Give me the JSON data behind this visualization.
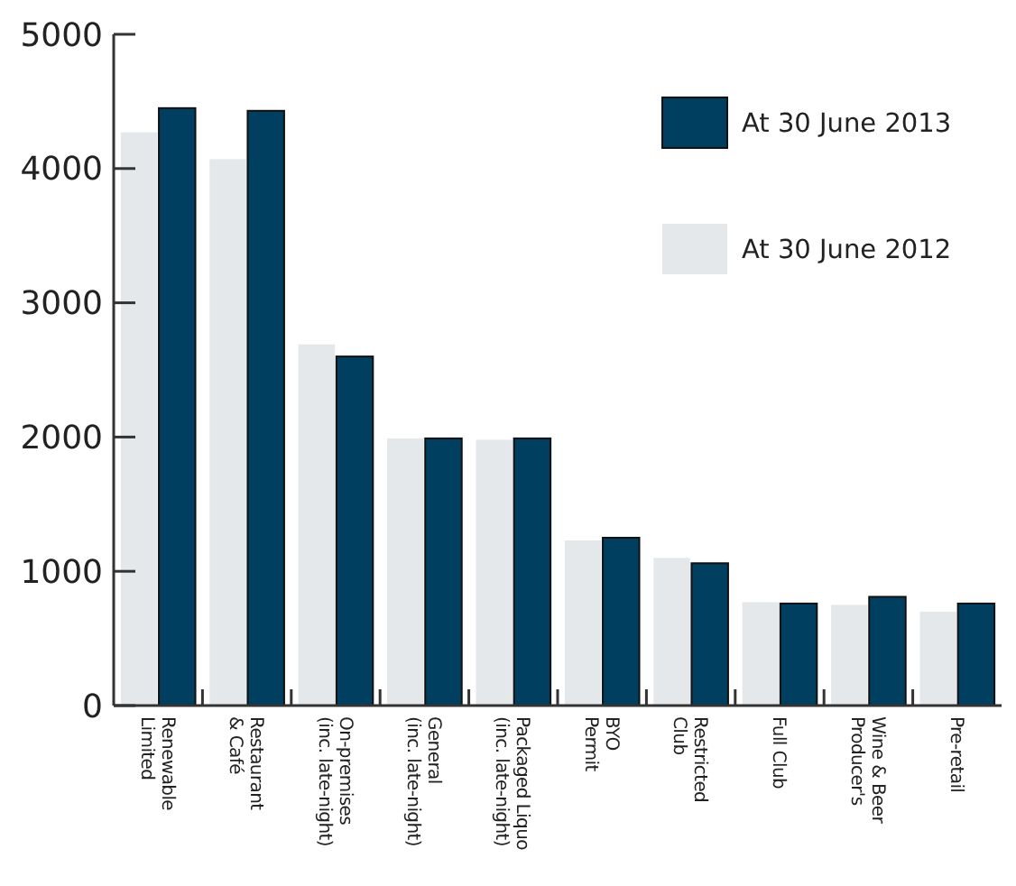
{
  "chart_data": {
    "type": "bar",
    "categories": [
      "Renewable\nLimited",
      "Restaurant\n& Café",
      "On-premises\n(inc. late-night)",
      "General\n(inc. late-night)",
      "Packaged Liquo\n(inc. late-night)",
      "BYO\nPermit",
      "Restricted\nClub",
      "Full Club",
      "Wine & Beer\nProducer's",
      "Pre-retail"
    ],
    "series": [
      {
        "name": "At 30 June 2012",
        "color": "#e5e8eb",
        "values": [
          4270,
          4070,
          2690,
          1990,
          1980,
          1230,
          1100,
          770,
          750,
          700
        ]
      },
      {
        "name": "At 30 June 2013",
        "color": "#003f5f",
        "values": [
          4450,
          4430,
          2600,
          1990,
          1990,
          1250,
          1060,
          760,
          810,
          760
        ]
      }
    ],
    "ylim": [
      0,
      5000
    ],
    "yticks": [
      0,
      1000,
      2000,
      3000,
      4000,
      5000
    ],
    "legend": "top right"
  }
}
